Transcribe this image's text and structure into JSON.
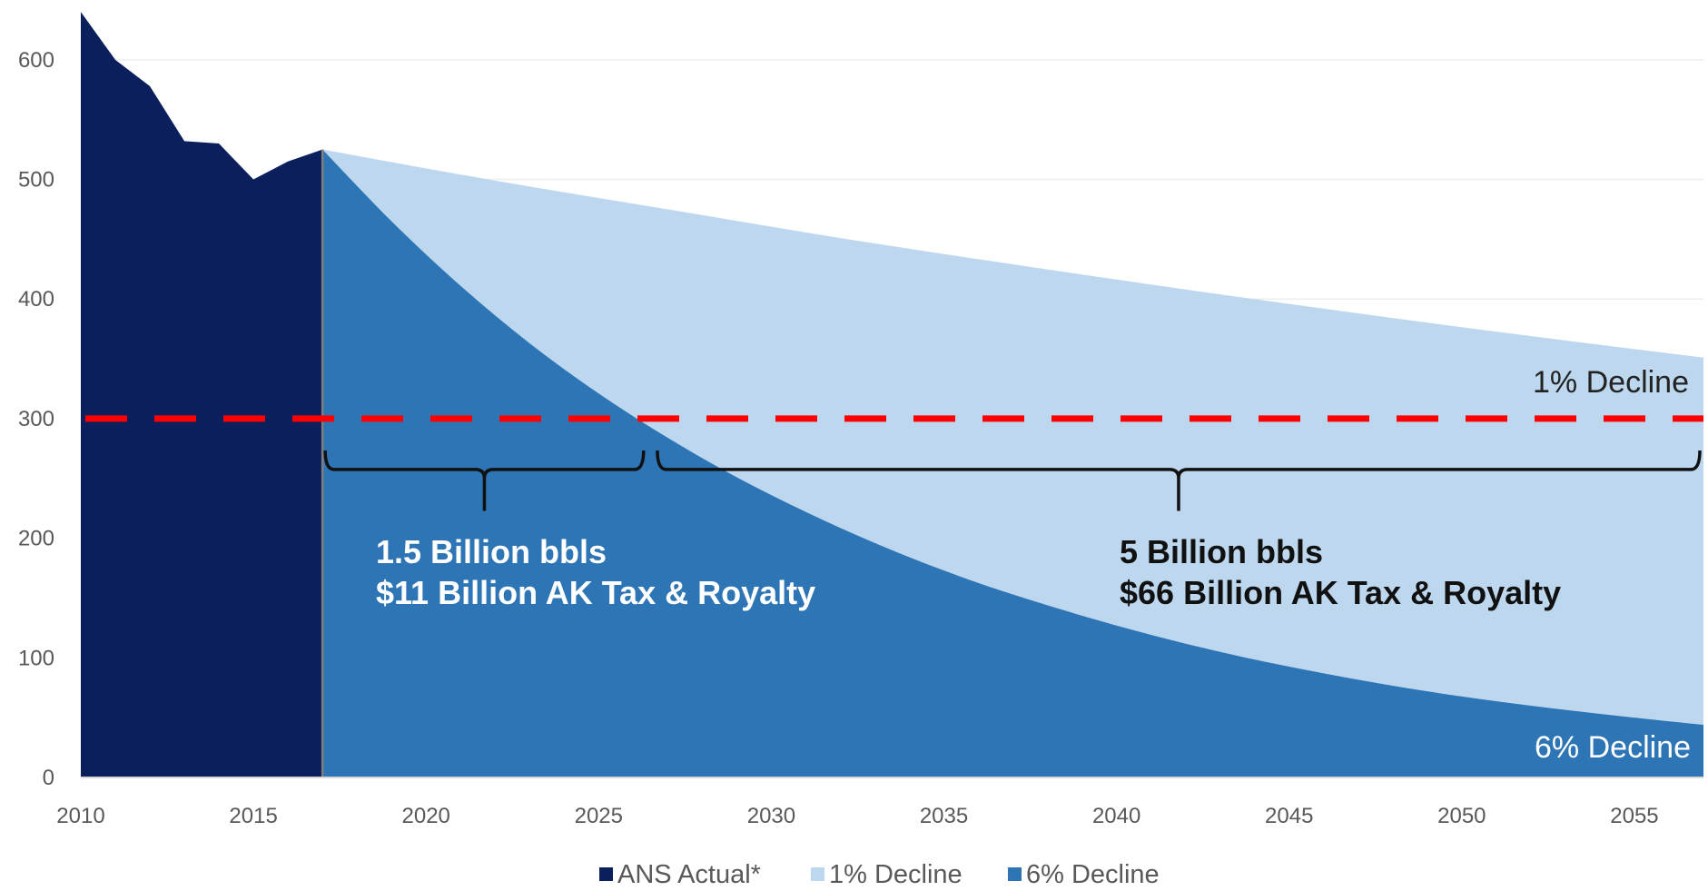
{
  "chart_data": {
    "type": "area",
    "title": "",
    "xlabel": "",
    "ylabel": "",
    "xlim": [
      2010,
      2057
    ],
    "ylim": [
      0,
      650
    ],
    "x_ticks": [
      "2010",
      "2015",
      "2020",
      "2025",
      "2030",
      "2035",
      "2040",
      "2045",
      "2050",
      "2055"
    ],
    "y_ticks": [
      "0",
      "100",
      "200",
      "300",
      "400",
      "500",
      "600"
    ],
    "grid": "horizontal",
    "legend_position": "bottom",
    "series": [
      {
        "name": "ANS Actual*",
        "color": "#0b1f5c",
        "x": [
          2010,
          2011,
          2012,
          2013,
          2014,
          2015,
          2016,
          2017
        ],
        "values": [
          640,
          600,
          578,
          532,
          530,
          500,
          515,
          525
        ]
      },
      {
        "name": "1% Decline",
        "color": "#bdd7ee",
        "x": [
          2017,
          2022,
          2027,
          2032,
          2037,
          2042,
          2047,
          2052,
          2057
        ],
        "values": [
          525,
          499,
          475,
          451,
          429,
          408,
          388,
          369,
          351
        ]
      },
      {
        "name": "6% Decline",
        "color": "#2e75b6",
        "x": [
          2017,
          2019,
          2021,
          2023,
          2025,
          2027,
          2029,
          2031,
          2033,
          2035,
          2037,
          2040,
          2043,
          2046,
          2049,
          2052,
          2055,
          2057
        ],
        "values": [
          525,
          465,
          411,
          363,
          321,
          284,
          251,
          222,
          196,
          173,
          153,
          127,
          105,
          87,
          72,
          60,
          50,
          44
        ]
      }
    ],
    "reference_line": {
      "y": 300,
      "color": "#ff0000",
      "style": "dashed"
    },
    "annotations": {
      "bracket_short": {
        "x_start": 2017,
        "x_end": 2026.3,
        "lines": [
          "1.5 Billion bbls",
          "$11 Billion  AK Tax  & Royalty"
        ]
      },
      "bracket_long": {
        "x_start": 2026.7,
        "x_end": 2057,
        "lines": [
          "5 Billion bbls",
          "$66 Billion AK Tax & Royalty"
        ]
      },
      "label_1pct": "1% Decline",
      "label_6pct": "6% Decline"
    }
  }
}
